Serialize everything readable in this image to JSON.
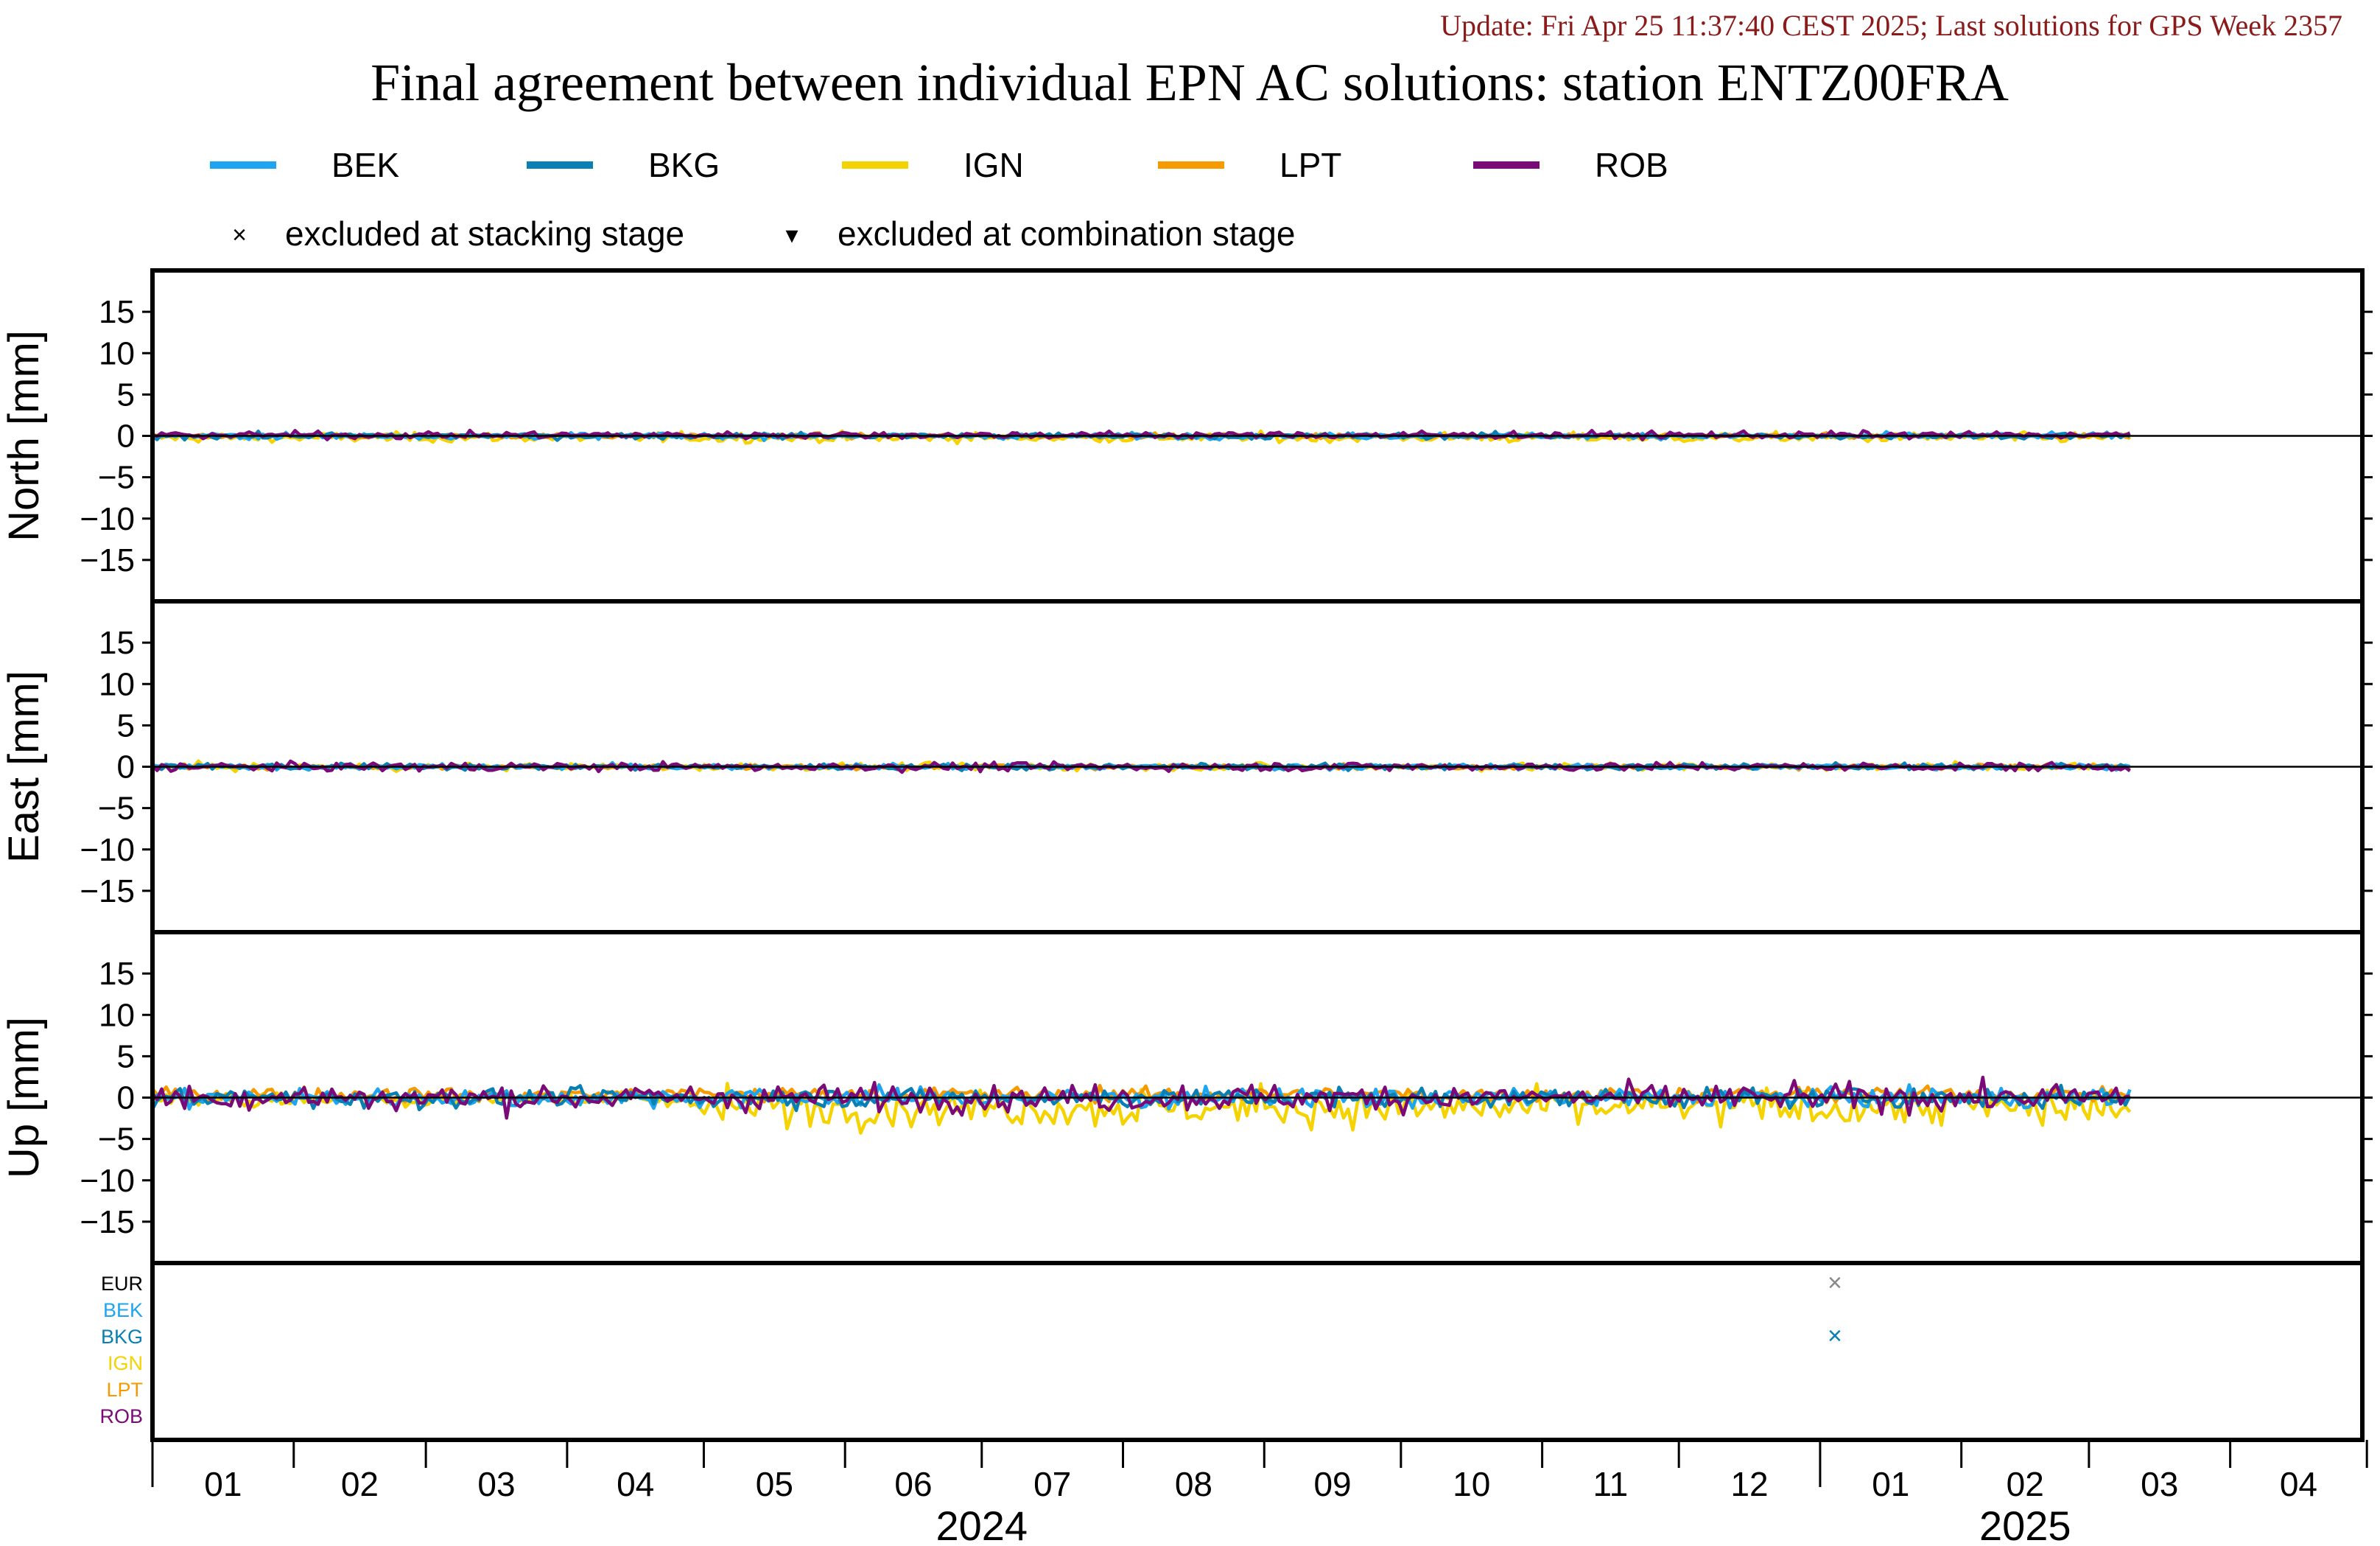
{
  "header": {
    "update_text": "Update: Fri Apr 25 11:37:40 CEST 2025; Last solutions for GPS Week 2357",
    "update_color": "#8b1a1a"
  },
  "chart_data": {
    "type": "line",
    "title": "Final agreement between individual EPN AC solutions: station ENTZ00FRA",
    "legend": {
      "placement": "top",
      "series": [
        {
          "name": "BEK",
          "color": "#1ea5f0"
        },
        {
          "name": "BKG",
          "color": "#0a7fb4"
        },
        {
          "name": "IGN",
          "color": "#f5d300"
        },
        {
          "name": "LPT",
          "color": "#f59a00"
        },
        {
          "name": "ROB",
          "color": "#7a0a78"
        }
      ],
      "markers": [
        {
          "symbol": "×",
          "label": "excluded at stacking stage"
        },
        {
          "symbol": "▾",
          "label": "excluded at combination stage"
        }
      ]
    },
    "x": {
      "start": "2024-01-01",
      "end": "2025-04-30",
      "data_end": "2025-03-10",
      "month_labels": [
        "01",
        "02",
        "03",
        "04",
        "05",
        "06",
        "07",
        "08",
        "09",
        "10",
        "11",
        "12",
        "01",
        "02",
        "03",
        "04"
      ],
      "year_labels": [
        {
          "label": "2024",
          "center": "2024-07-01"
        },
        {
          "label": "2025",
          "center": "2025-02-15"
        }
      ]
    },
    "y": {
      "ylim": [
        -20,
        20
      ],
      "ticks": [
        15,
        10,
        5,
        0,
        -5,
        -10,
        -15
      ],
      "tick_labels": [
        "15",
        "10",
        "5",
        "0",
        "−5",
        "−10",
        "−15"
      ]
    },
    "panels": [
      {
        "id": "north",
        "ylabel": "North [mm]",
        "amplitude": {
          "BEK": 0.25,
          "BKG": 0.25,
          "IGN": 0.4,
          "LPT": 0.2,
          "ROB": 0.3
        },
        "bias": {
          "BEK": 0,
          "BKG": 0,
          "IGN": -0.2,
          "LPT": 0,
          "ROB": 0.1
        }
      },
      {
        "id": "east",
        "ylabel": "East [mm]",
        "amplitude": {
          "BEK": 0.25,
          "BKG": 0.25,
          "IGN": 0.3,
          "LPT": 0.2,
          "ROB": 0.35
        },
        "bias": {
          "BEK": 0,
          "BKG": 0,
          "IGN": 0,
          "LPT": 0,
          "ROB": 0
        }
      },
      {
        "id": "up",
        "ylabel": "Up [mm]",
        "amplitude": {
          "BEK": 0.8,
          "BKG": 0.8,
          "IGN": 1.6,
          "LPT": 0.6,
          "ROB": 1.1
        },
        "bias": {
          "BEK": 0,
          "BKG": 0,
          "IGN": -1.2,
          "LPT": 0.4,
          "ROB": 0
        }
      }
    ],
    "exclusion_rows": [
      {
        "name": "EUR",
        "color": "#000000"
      },
      {
        "name": "BEK",
        "color": "#1ea5f0"
      },
      {
        "name": "BKG",
        "color": "#0a7fb4"
      },
      {
        "name": "IGN",
        "color": "#f5d300"
      },
      {
        "name": "LPT",
        "color": "#f59a00"
      },
      {
        "name": "ROB",
        "color": "#7a0a78"
      }
    ],
    "exclusions": [
      {
        "row": "EUR",
        "date": "2025-01-01",
        "symbol": "×"
      },
      {
        "row": "BKG",
        "date": "2025-01-01",
        "symbol": "×"
      }
    ]
  }
}
